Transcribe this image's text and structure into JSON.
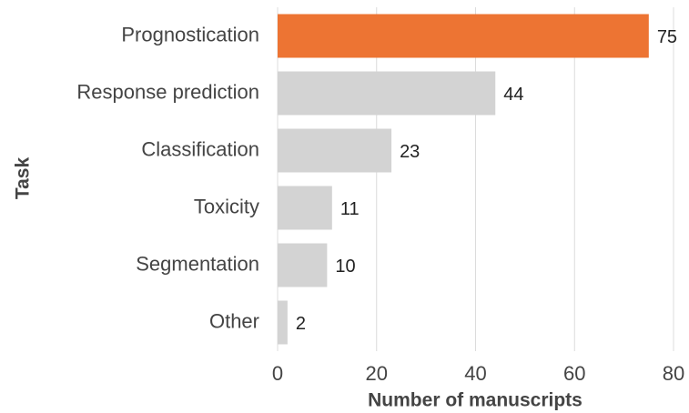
{
  "chart_data": {
    "type": "hbar",
    "categories": [
      "Prognostication",
      "Response prediction",
      "Classification",
      "Toxicity",
      "Segmentation",
      "Other"
    ],
    "values": [
      75,
      44,
      23,
      11,
      10,
      2
    ],
    "colors": [
      "#ed7433",
      "#d3d3d3",
      "#d3d3d3",
      "#d3d3d3",
      "#d3d3d3",
      "#d3d3d3"
    ],
    "xlabel": "Number of manuscripts",
    "ylabel": "Task",
    "xlim": [
      0,
      80
    ],
    "xticks": [
      0,
      20,
      40,
      60,
      80
    ],
    "grid": true
  }
}
